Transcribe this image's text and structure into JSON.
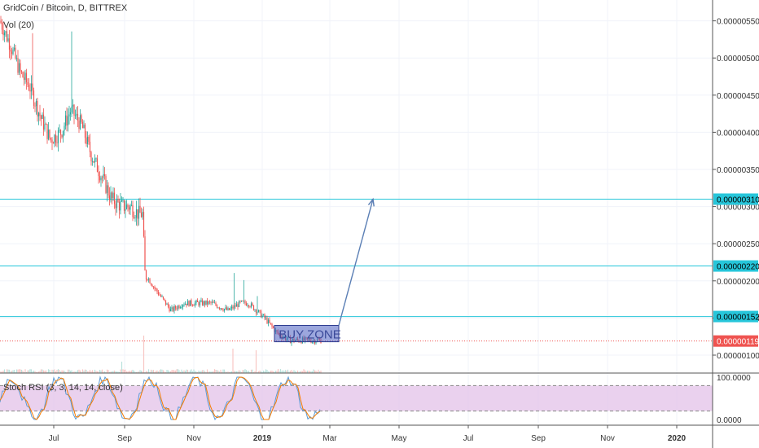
{
  "header": {
    "title": "GridCoin / Bitcoin, D, BITTREX",
    "volume_label": "Vol (20)",
    "indicator_label": "Stoch RSI (3, 3, 14, 14, close)"
  },
  "colors": {
    "bull": "#26a69a",
    "bear": "#ef5350",
    "level_line": "#26c6da",
    "current_price_line": "#ef5350",
    "arrow": "#5b7fb5",
    "buy_zone_fill": "#4a5fc1",
    "rsi_band": "#e1bee7",
    "rsi_k": "#5b9bd5",
    "rsi_d": "#f57c00"
  },
  "chart_data": [
    {
      "type": "candlestick",
      "title": "GridCoin / Bitcoin, D, BITTREX",
      "x_ticks": [
        "Jul",
        "Sep",
        "Nov",
        "2019",
        "Mar",
        "May",
        "Jul",
        "Sep",
        "Nov",
        "2020"
      ],
      "y_ticks": [
        "0.00000550",
        "0.00000500",
        "0.00000450",
        "0.00000400",
        "0.00000350",
        "0.00000300",
        "0.00000250",
        "0.00000200",
        "0.00000150",
        "0.00000100"
      ],
      "ylim": [
        8.5e-07,
        5.65e-06
      ],
      "approx_close_path": [
        [
          0,
          5.5e-06
        ],
        [
          12,
          5.2e-06
        ],
        [
          25,
          4.8e-06
        ],
        [
          37,
          4.6e-06
        ],
        [
          50,
          4.2e-06
        ],
        [
          62,
          3.9e-06
        ],
        [
          75,
          4e-06
        ],
        [
          87,
          4.3e-06
        ],
        [
          100,
          4.1e-06
        ],
        [
          112,
          3.7e-06
        ],
        [
          125,
          3.4e-06
        ],
        [
          137,
          3.1e-06
        ],
        [
          150,
          3e-06
        ],
        [
          160,
          3e-06
        ],
        [
          170,
          2.9e-06
        ],
        [
          175,
          2.9e-06
        ],
        [
          178,
          2.1e-06
        ],
        [
          190,
          1.9e-06
        ],
        [
          210,
          1.6e-06
        ],
        [
          225,
          1.7e-06
        ],
        [
          240,
          1.7e-06
        ],
        [
          260,
          1.7e-06
        ],
        [
          280,
          1.6e-06
        ],
        [
          295,
          1.7e-06
        ],
        [
          305,
          1.7e-06
        ],
        [
          315,
          1.6e-06
        ],
        [
          325,
          1.5e-06
        ],
        [
          340,
          1.3e-06
        ],
        [
          355,
          1.2e-06
        ],
        [
          370,
          1.2e-06
        ],
        [
          385,
          1.2e-06
        ],
        [
          395,
          1.2e-06
        ]
      ],
      "price_labels": [
        {
          "value": "0.00000310",
          "kind": "level"
        },
        {
          "value": "0.00000220",
          "kind": "level"
        },
        {
          "value": "0.00000152",
          "kind": "level"
        },
        {
          "value": "0.00000119",
          "kind": "current"
        }
      ],
      "horizontal_levels": [
        3.1e-06,
        2.2e-06,
        1.52e-06
      ],
      "current_price": 1.19e-06,
      "annotation": {
        "text": "BUY ZONE",
        "box": {
          "x_start": 337,
          "x_end": 416,
          "y_low": 1.18e-06,
          "y_high": 1.4e-06
        },
        "arrow_from": [
          416,
          1.4e-06
        ],
        "arrow_to": [
          458,
          3.1e-06
        ]
      }
    },
    {
      "type": "line",
      "title": "Stoch RSI (3, 3, 14, 14, close)",
      "y_ticks": [
        "100.0000",
        "0.0000"
      ],
      "ylim": [
        0,
        100
      ],
      "bands": [
        20,
        80
      ],
      "series": []
    }
  ]
}
